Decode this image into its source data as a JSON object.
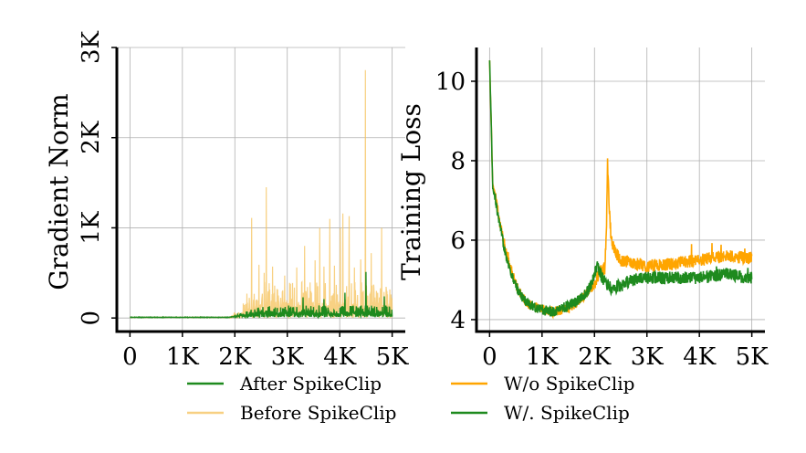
{
  "chart_data": [
    {
      "type": "line",
      "ylabel": "Gradient Norm",
      "xlabel": "",
      "x_range": [
        0,
        5000
      ],
      "xlim": [
        -250,
        5250
      ],
      "ylim": [
        -150,
        3000
      ],
      "x_ticks": [
        0,
        1000,
        2000,
        3000,
        4000,
        5000
      ],
      "x_tick_labels": [
        "0",
        "1K",
        "2K",
        "3K",
        "4K",
        "5K"
      ],
      "y_ticks": [
        0,
        1000,
        2000,
        3000
      ],
      "y_tick_labels": [
        "0",
        "1K",
        "2K",
        "3K"
      ],
      "grid": true,
      "series": [
        {
          "name": "Before SpikeClip",
          "color": "#f5c15a",
          "baseline_before_2000": 5,
          "noise_level_after_2000": [
            0,
            400
          ],
          "spikes": [
            [
              2230,
              270
            ],
            [
              2320,
              1110
            ],
            [
              2460,
              590
            ],
            [
              2560,
              500
            ],
            [
              2600,
              1450
            ],
            [
              2720,
              570
            ],
            [
              2830,
              250
            ],
            [
              2950,
              470
            ],
            [
              3060,
              380
            ],
            [
              3180,
              560
            ],
            [
              3330,
              800
            ],
            [
              3460,
              280
            ],
            [
              3530,
              640
            ],
            [
              3620,
              1000
            ],
            [
              3700,
              570
            ],
            [
              3810,
              1100
            ],
            [
              3900,
              580
            ],
            [
              4010,
              1000
            ],
            [
              4060,
              1160
            ],
            [
              4180,
              1130
            ],
            [
              4280,
              560
            ],
            [
              4400,
              650
            ],
            [
              4490,
              2750
            ],
            [
              4600,
              720
            ],
            [
              4700,
              300
            ],
            [
              4800,
              1000
            ],
            [
              4900,
              300
            ]
          ]
        },
        {
          "name": "After SpikeClip",
          "color": "#1e8a1e",
          "baseline_before_2000": 5,
          "noise_level_after_2000": [
            10,
            140
          ],
          "spikes": [
            [
              3300,
              230
            ],
            [
              3700,
              210
            ],
            [
              4100,
              280
            ],
            [
              4500,
              510
            ],
            [
              4850,
              240
            ]
          ]
        }
      ],
      "legend": "bottom"
    },
    {
      "type": "line",
      "ylabel": "Training Loss",
      "xlabel": "",
      "x_range": [
        0,
        5000
      ],
      "xlim": [
        -250,
        5250
      ],
      "ylim": [
        3.7,
        10.85
      ],
      "x_ticks": [
        0,
        1000,
        2000,
        3000,
        4000,
        5000
      ],
      "x_tick_labels": [
        "0",
        "1K",
        "2K",
        "3K",
        "4K",
        "5K"
      ],
      "y_ticks": [
        4,
        6,
        8,
        10
      ],
      "y_tick_labels": [
        "4",
        "6",
        "8",
        "10"
      ],
      "grid": true,
      "series": [
        {
          "name": "W/o SpikeClip",
          "color": "#ffa500",
          "points": [
            [
              0,
              10.5
            ],
            [
              30,
              9.0
            ],
            [
              60,
              7.4
            ],
            [
              100,
              7.2
            ],
            [
              200,
              6.4
            ],
            [
              300,
              5.8
            ],
            [
              400,
              5.3
            ],
            [
              500,
              4.9
            ],
            [
              600,
              4.6
            ],
            [
              700,
              4.45
            ],
            [
              800,
              4.35
            ],
            [
              1000,
              4.25
            ],
            [
              1200,
              4.2
            ],
            [
              1400,
              4.25
            ],
            [
              1600,
              4.35
            ],
            [
              1800,
              4.6
            ],
            [
              2000,
              4.9
            ],
            [
              2100,
              5.2
            ],
            [
              2200,
              5.3
            ],
            [
              2230,
              6.5
            ],
            [
              2250,
              8.0
            ],
            [
              2280,
              6.8
            ],
            [
              2320,
              6.0
            ],
            [
              2400,
              5.7
            ],
            [
              2500,
              5.5
            ],
            [
              3000,
              5.35
            ],
            [
              3500,
              5.4
            ],
            [
              4000,
              5.5
            ],
            [
              4500,
              5.6
            ],
            [
              4950,
              5.55
            ]
          ]
        },
        {
          "name": "W/. SpikeClip",
          "color": "#1e8a1e",
          "points": [
            [
              0,
              10.5
            ],
            [
              30,
              9.0
            ],
            [
              60,
              7.3
            ],
            [
              100,
              7.1
            ],
            [
              200,
              6.3
            ],
            [
              300,
              5.7
            ],
            [
              400,
              5.2
            ],
            [
              500,
              4.85
            ],
            [
              600,
              4.6
            ],
            [
              700,
              4.45
            ],
            [
              800,
              4.35
            ],
            [
              1000,
              4.25
            ],
            [
              1200,
              4.2
            ],
            [
              1400,
              4.3
            ],
            [
              1600,
              4.4
            ],
            [
              1800,
              4.6
            ],
            [
              1950,
              4.9
            ],
            [
              2050,
              5.35
            ],
            [
              2150,
              5.05
            ],
            [
              2300,
              4.8
            ],
            [
              2500,
              4.85
            ],
            [
              2700,
              5.0
            ],
            [
              3000,
              5.05
            ],
            [
              3500,
              5.05
            ],
            [
              4000,
              5.05
            ],
            [
              4500,
              5.15
            ],
            [
              4950,
              5.05
            ]
          ]
        }
      ],
      "legend": "bottom"
    }
  ]
}
